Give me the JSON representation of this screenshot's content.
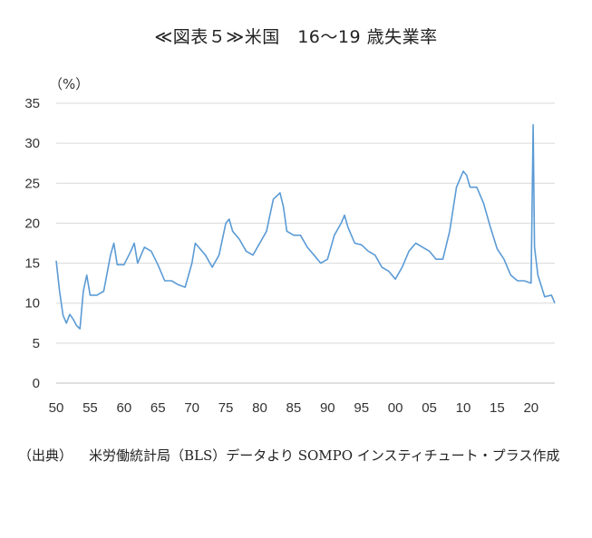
{
  "chart_data": {
    "type": "line",
    "title": "≪図表５≫米国　16～19 歳失業率",
    "unit_label": "（%）",
    "ylim": [
      0,
      35
    ],
    "y_ticks": [
      "0",
      "5",
      "10",
      "15",
      "20",
      "25",
      "30",
      "35"
    ],
    "x_ticks": [
      "50",
      "55",
      "60",
      "65",
      "70",
      "75",
      "80",
      "85",
      "90",
      "95",
      "00",
      "05",
      "10",
      "15",
      "20"
    ],
    "xlim": [
      1950,
      2023.5
    ],
    "grid": true,
    "line_color": "#5b9bd5",
    "series": [
      {
        "x": [
          1950,
          1950.5,
          1951,
          1951.5,
          1952,
          1952.5,
          1953,
          1953.5,
          1954,
          1954.5,
          1955,
          1956,
          1957,
          1958,
          1958.5,
          1959,
          1960,
          1961,
          1961.5,
          1962,
          1963,
          1964,
          1965,
          1966,
          1967,
          1968,
          1969,
          1970,
          1970.5,
          1971,
          1972,
          1973,
          1974,
          1975,
          1975.5,
          1976,
          1977,
          1978,
          1979,
          1980,
          1981,
          1982,
          1983,
          1983.5,
          1984,
          1985,
          1986,
          1987,
          1988,
          1989,
          1990,
          1991,
          1992,
          1992.5,
          1993,
          1994,
          1995,
          1996,
          1997,
          1998,
          1999,
          2000,
          2001,
          2002,
          2003,
          2004,
          2005,
          2006,
          2007,
          2008,
          2009,
          2010,
          2010.5,
          2011,
          2012,
          2013,
          2014,
          2015,
          2016,
          2017,
          2018,
          2019,
          2020,
          2020.3,
          2020.5,
          2021,
          2022,
          2023,
          2023.5
        ],
        "y": [
          15.3,
          11.5,
          8.5,
          7.5,
          8.6,
          8.0,
          7.2,
          6.8,
          11.5,
          13.5,
          11.0,
          11.0,
          11.5,
          16.0,
          17.5,
          14.8,
          14.8,
          16.5,
          17.5,
          15.0,
          17.0,
          16.5,
          14.8,
          12.8,
          12.8,
          12.3,
          12.0,
          15.0,
          17.5,
          17.0,
          16.0,
          14.5,
          16.0,
          20.0,
          20.5,
          19.0,
          18.0,
          16.5,
          16.0,
          17.5,
          19.0,
          23.0,
          23.8,
          22.0,
          19.0,
          18.5,
          18.5,
          17.0,
          16.0,
          15.0,
          15.5,
          18.5,
          20.0,
          21.0,
          19.5,
          17.5,
          17.3,
          16.5,
          16.0,
          14.5,
          14.0,
          13.0,
          14.5,
          16.5,
          17.5,
          17.0,
          16.5,
          15.5,
          15.5,
          19.0,
          24.5,
          26.5,
          26.0,
          24.5,
          24.5,
          22.5,
          19.5,
          16.8,
          15.5,
          13.5,
          12.8,
          12.8,
          12.5,
          32.3,
          17.0,
          13.5,
          10.8,
          11.0,
          10.0
        ]
      }
    ]
  },
  "source": {
    "label": "（出典）",
    "text": "米労働統計局（BLS）データより SOMPO インスティチュート・プラス作成"
  }
}
